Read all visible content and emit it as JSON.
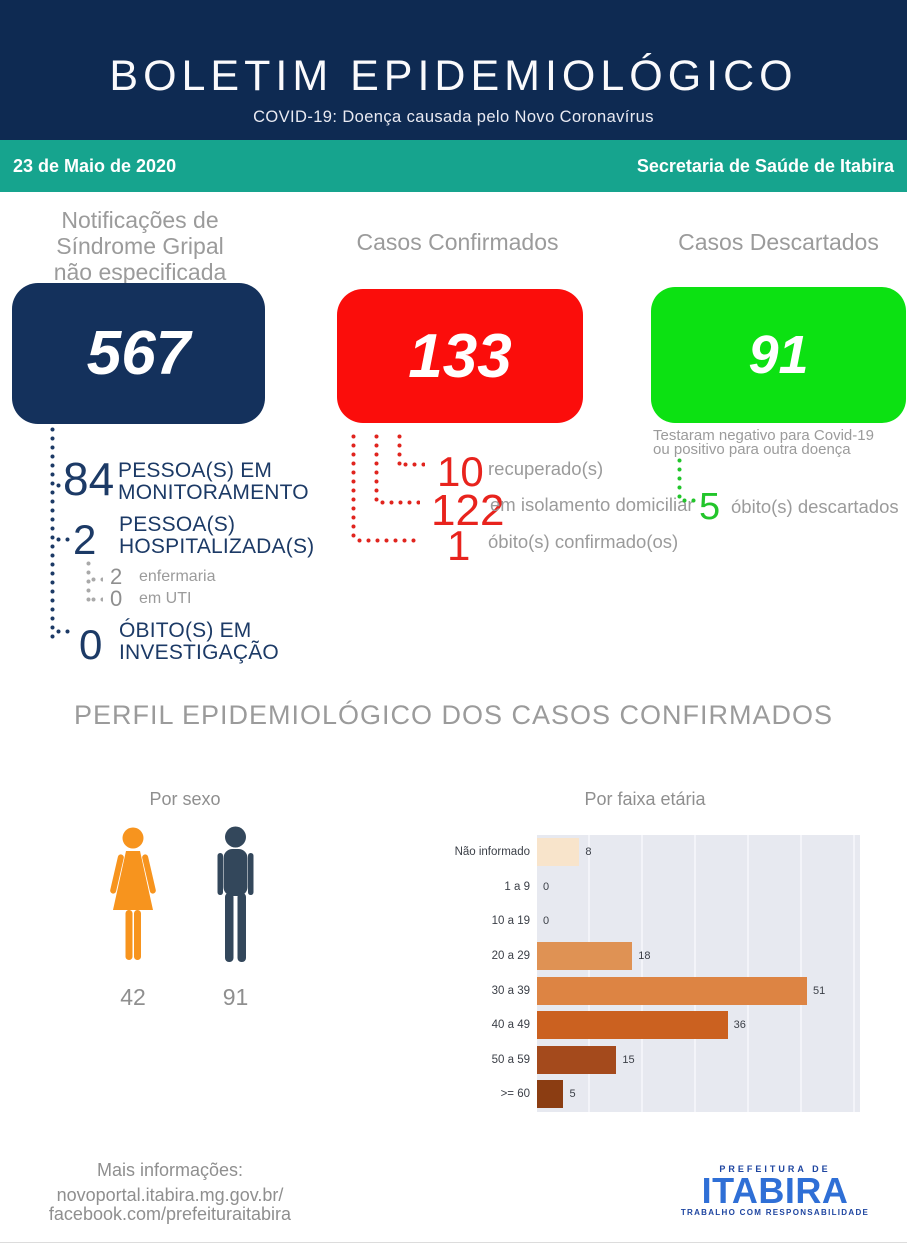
{
  "header": {
    "title": "BOLETIM EPIDEMIOLÓGICO",
    "subtitle": "COVID-19: Doença causada pelo Novo Coronavírus",
    "date": "23 de Maio de 2020",
    "org": "Secretaria de Saúde de Itabira",
    "colors": {
      "navy": "#0E2A52",
      "teal": "#16A48E"
    }
  },
  "stats": {
    "notifications": {
      "label_lines": [
        "Notificações de",
        "Síndrome Gripal",
        "não especificada"
      ],
      "value": "567",
      "color": "#14315C"
    },
    "monitoring": {
      "value": "84",
      "label_lines": [
        "PESSOA(S) EM",
        "MONITORAMENTO"
      ]
    },
    "hospitalized": {
      "value": "2",
      "label_lines": [
        "PESSOA(S)",
        "HOSPITALIZADA(S)"
      ],
      "sub": [
        {
          "value": "2",
          "label": "enfermaria"
        },
        {
          "value": "0",
          "label": "em UTI"
        }
      ]
    },
    "deaths_investigation": {
      "value": "0",
      "label_lines": [
        "ÓBITO(S) EM",
        "INVESTIGAÇÃO"
      ]
    },
    "confirmed": {
      "label": "Casos Confirmados",
      "value": "133",
      "color": "#FB0D0B",
      "details": [
        {
          "value": "10",
          "label": "recuperado(s)"
        },
        {
          "value": "122",
          "label": "em isolamento domiciliar"
        },
        {
          "value": "1",
          "label": "óbito(s) confirmado(os)"
        }
      ]
    },
    "discarded": {
      "label": "Casos Descartados",
      "value": "91",
      "color": "#0CE112",
      "note_lines": [
        "Testaram negativo para Covid-19",
        "ou positivo para outra doença"
      ],
      "detail": {
        "value": "5",
        "label": "óbito(s) descartados"
      }
    }
  },
  "profile": {
    "title": "PERFIL EPIDEMIOLÓGICO DOS CASOS CONFIRMADOS",
    "by_sex": {
      "title": "Por sexo",
      "female": {
        "value": "42",
        "color": "#F7941E"
      },
      "male": {
        "value": "91",
        "color": "#33475B"
      }
    },
    "by_age": {
      "title": "Por faixa etária"
    }
  },
  "chart_data": {
    "type": "bar",
    "orientation": "horizontal",
    "title": "Por faixa etária",
    "categories": [
      "Não informado",
      "1 a 9",
      "10 a 19",
      "20 a 29",
      "30 a 39",
      "40 a 49",
      "50 a 59",
      ">= 60"
    ],
    "values": [
      8,
      0,
      0,
      18,
      51,
      36,
      15,
      5
    ],
    "bar_colors": [
      "#F8E4CB",
      "#F8E4CB",
      "#F8E4CB",
      "#DF9254",
      "#DD8443",
      "#CB6120",
      "#A44A1C",
      "#8B3D12"
    ],
    "xlim": [
      0,
      61
    ],
    "gridline_step": 10,
    "grid": true,
    "legend": false,
    "plot_bg": "#E7E9F0",
    "value_labels": true
  },
  "footer": {
    "more_info": "Mais informações:",
    "url1": "novoportal.itabira.mg.gov.br/",
    "url2": "facebook.com/prefeituraitabira",
    "logo": {
      "top": "PREFEITURA DE",
      "name": "ITABIRA",
      "bottom": "TRABALHO COM RESPONSABILIDADE"
    }
  }
}
